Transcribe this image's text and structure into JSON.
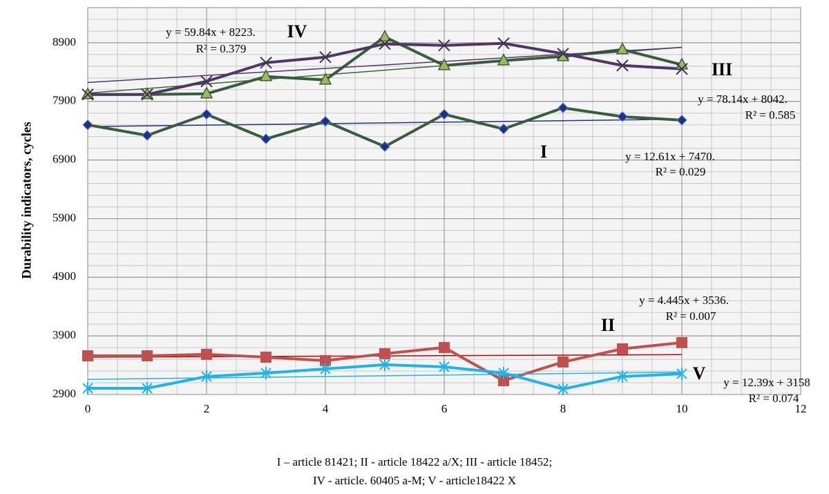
{
  "chart_data": {
    "type": "line",
    "y_label": "Durability indicators, cycles",
    "caption": [
      "I – article 81421; II - article 18422 a/X; III - article 18452;",
      "IV - article. 60405 a-M; V - article18422 X"
    ],
    "x": [
      0,
      1,
      2,
      3,
      4,
      5,
      6,
      7,
      8,
      9,
      10
    ],
    "xlim": [
      0,
      12
    ],
    "xticks": [
      0,
      2,
      4,
      6,
      8,
      10,
      12
    ],
    "ylim": [
      2900,
      9500
    ],
    "yticks": [
      2900,
      3900,
      4900,
      5900,
      6900,
      7900,
      8900
    ],
    "grid": true,
    "series": [
      {
        "name": "I",
        "color": "#385d3c",
        "marker": "diamond",
        "marker_color": "#1f2f8a",
        "values": [
          7500,
          7320,
          7680,
          7260,
          7560,
          7130,
          7680,
          7430,
          7790,
          7640,
          7580
        ],
        "trend": {
          "slope": 12.61,
          "intercept": 7470,
          "color": "#1f2f8a",
          "equation": "y = 12.61x + 7470.",
          "r2": "R² = 0.029"
        }
      },
      {
        "name": "II",
        "color": "#c0504d",
        "marker": "square",
        "marker_color": "#c0504d",
        "values": [
          3560,
          3560,
          3585,
          3537,
          3478,
          3596,
          3702,
          3136,
          3455,
          3679,
          3785
        ],
        "trend": {
          "slope": 4.445,
          "intercept": 3536,
          "color": "#c00000",
          "equation": "y = 4.445x + 3536.",
          "r2": "R² = 0.007"
        }
      },
      {
        "name": "III",
        "color": "#385d3c",
        "marker": "triangle",
        "marker_color": "#9bbb59",
        "values": [
          8018,
          8018,
          8030,
          8325,
          8265,
          9000,
          8513,
          8596,
          8666,
          8784,
          8525
        ],
        "trend": {
          "slope": 78.14,
          "intercept": 8042,
          "color": "#2e6b2e",
          "equation": "y = 78.14x + 8042.",
          "r2": "R² = 0.585"
        }
      },
      {
        "name": "IV",
        "color": "#503566",
        "marker": "x",
        "marker_color": "#403152",
        "values": [
          8018,
          8018,
          8242,
          8560,
          8655,
          8880,
          8855,
          8890,
          8714,
          8513,
          8454
        ],
        "trend": {
          "slope": 59.84,
          "intercept": 8223,
          "color": "#503566",
          "equation": "y = 59.84x + 8223.",
          "r2": "R² = 0.379"
        }
      },
      {
        "name": "V",
        "color": "#1fb3ec",
        "marker": "star",
        "marker_color": "#1fb3ec",
        "values": [
          3006,
          3006,
          3207,
          3266,
          3337,
          3408,
          3372,
          3266,
          2994,
          3207,
          3254
        ],
        "trend": {
          "slope": 12.39,
          "intercept": 3158,
          "color": "#1fb3ec",
          "equation": "y = 12.39x + 3158",
          "r2": "R² = 0.074"
        }
      }
    ]
  }
}
